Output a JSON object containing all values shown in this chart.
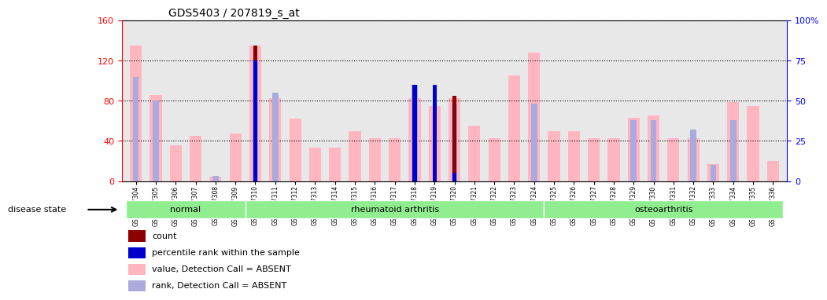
{
  "title": "GDS5403 / 207819_s_at",
  "samples": [
    "GSM1337304",
    "GSM1337305",
    "GSM1337306",
    "GSM1337307",
    "GSM1337308",
    "GSM1337309",
    "GSM1337310",
    "GSM1337311",
    "GSM1337312",
    "GSM1337313",
    "GSM1337314",
    "GSM1337315",
    "GSM1337316",
    "GSM1337317",
    "GSM1337318",
    "GSM1337319",
    "GSM1337320",
    "GSM1337321",
    "GSM1337322",
    "GSM1337323",
    "GSM1337324",
    "GSM1337325",
    "GSM1337326",
    "GSM1337327",
    "GSM1337328",
    "GSM1337329",
    "GSM1337330",
    "GSM1337331",
    "GSM1337332",
    "GSM1337333",
    "GSM1337334",
    "GSM1337335",
    "GSM1337336"
  ],
  "pink_values": [
    135,
    86,
    36,
    45,
    4,
    47,
    135,
    83,
    62,
    33,
    33,
    50,
    43,
    43,
    83,
    75,
    83,
    55,
    43,
    105,
    128,
    50,
    50,
    43,
    43,
    63,
    65,
    43,
    43,
    17,
    79,
    75,
    20
  ],
  "blue_rank_values": [
    65,
    50,
    0,
    0,
    3,
    0,
    75,
    55,
    0,
    0,
    0,
    0,
    0,
    0,
    60,
    0,
    48,
    0,
    0,
    0,
    48,
    0,
    0,
    0,
    0,
    38,
    38,
    0,
    32,
    10,
    38,
    0,
    0
  ],
  "red_count_values": [
    0,
    0,
    0,
    0,
    0,
    0,
    135,
    0,
    0,
    0,
    0,
    0,
    0,
    0,
    85,
    85,
    85,
    0,
    0,
    0,
    0,
    0,
    0,
    0,
    0,
    0,
    0,
    0,
    0,
    0,
    0,
    0,
    0
  ],
  "blue_percentile_values": [
    0,
    0,
    0,
    0,
    0,
    0,
    75,
    0,
    0,
    0,
    0,
    0,
    0,
    0,
    60,
    60,
    5,
    0,
    0,
    0,
    0,
    0,
    0,
    0,
    0,
    0,
    0,
    0,
    0,
    0,
    0,
    0,
    0
  ],
  "disease_groups": [
    {
      "label": "normal",
      "start": 0,
      "end": 5
    },
    {
      "label": "rheumatoid arthritis",
      "start": 6,
      "end": 20
    },
    {
      "label": "osteoarthritis",
      "start": 21,
      "end": 32
    }
  ],
  "ylim_left": [
    0,
    160
  ],
  "ylim_right": [
    0,
    100
  ],
  "yticks_left": [
    0,
    40,
    80,
    120,
    160
  ],
  "yticks_right": [
    0,
    25,
    50,
    75,
    100
  ],
  "ytick_labels_left": [
    "0",
    "40",
    "80",
    "120",
    "160"
  ],
  "ytick_labels_right": [
    "0",
    "25",
    "50",
    "75",
    "100%"
  ],
  "color_pink": "#FFB6C1",
  "color_light_blue": "#AAAADD",
  "color_dark_red": "#8B0000",
  "color_blue": "#0000CD",
  "color_bg_axis": "#E8E8E8",
  "color_group_normal": "#90EE90",
  "color_group_ra": "#90EE90",
  "color_group_oa": "#90EE90",
  "bar_width": 0.6
}
